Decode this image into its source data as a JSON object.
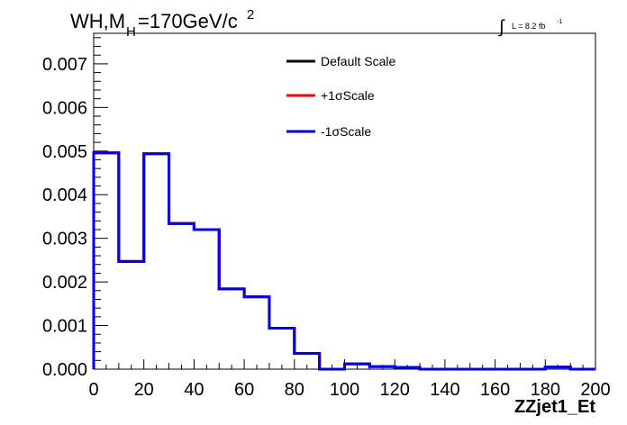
{
  "chart_data": {
    "type": "histogram",
    "title_main": "WH,M",
    "title_sub": "H",
    "title_value": "=170GeV/c",
    "title_sup": "2",
    "lumi_label": "L = 8.2 fb",
    "lumi_sup": "-1",
    "xlabel": "ZZjet1_Et",
    "ylabel": "",
    "xlim": [
      0,
      200
    ],
    "ylim": [
      0,
      0.0077
    ],
    "xticks": [
      "0",
      "20",
      "40",
      "60",
      "80",
      "100",
      "120",
      "140",
      "160",
      "180",
      "200"
    ],
    "yticks": [
      "0.000",
      "0.001",
      "0.002",
      "0.003",
      "0.004",
      "0.005",
      "0.006",
      "0.007"
    ],
    "bin_edges": [
      0,
      10,
      20,
      30,
      40,
      50,
      60,
      70,
      80,
      90,
      100,
      110,
      120,
      130,
      140,
      150,
      160,
      170,
      180,
      190,
      200
    ],
    "legend_position": "top-center",
    "series": [
      {
        "name": "Default Scale",
        "color": "#000000",
        "values": [
          0.00496,
          0.00247,
          0.00494,
          0.00334,
          0.0032,
          0.00184,
          0.00166,
          0.00094,
          0.00036,
          0.0,
          0.00012,
          6e-05,
          4e-05,
          0.0,
          0.0,
          0.0,
          0.0,
          0.0,
          5e-05,
          0.0
        ]
      },
      {
        "name": "+1σScale",
        "color": "#ff0000",
        "values": [
          0.00496,
          0.00247,
          0.00494,
          0.00334,
          0.0032,
          0.00184,
          0.00166,
          0.00094,
          0.00036,
          0.0,
          0.00012,
          6e-05,
          4e-05,
          0.0,
          0.0,
          0.0,
          0.0,
          0.0,
          5e-05,
          0.0
        ]
      },
      {
        "name": "-1σScale",
        "color": "#0000ee",
        "values": [
          0.00496,
          0.00247,
          0.00494,
          0.00334,
          0.0032,
          0.00184,
          0.00166,
          0.00094,
          0.00036,
          0.0,
          0.00012,
          6e-05,
          4e-05,
          0.0,
          0.0,
          0.0,
          0.0,
          0.0,
          5e-05,
          0.0
        ]
      }
    ]
  }
}
